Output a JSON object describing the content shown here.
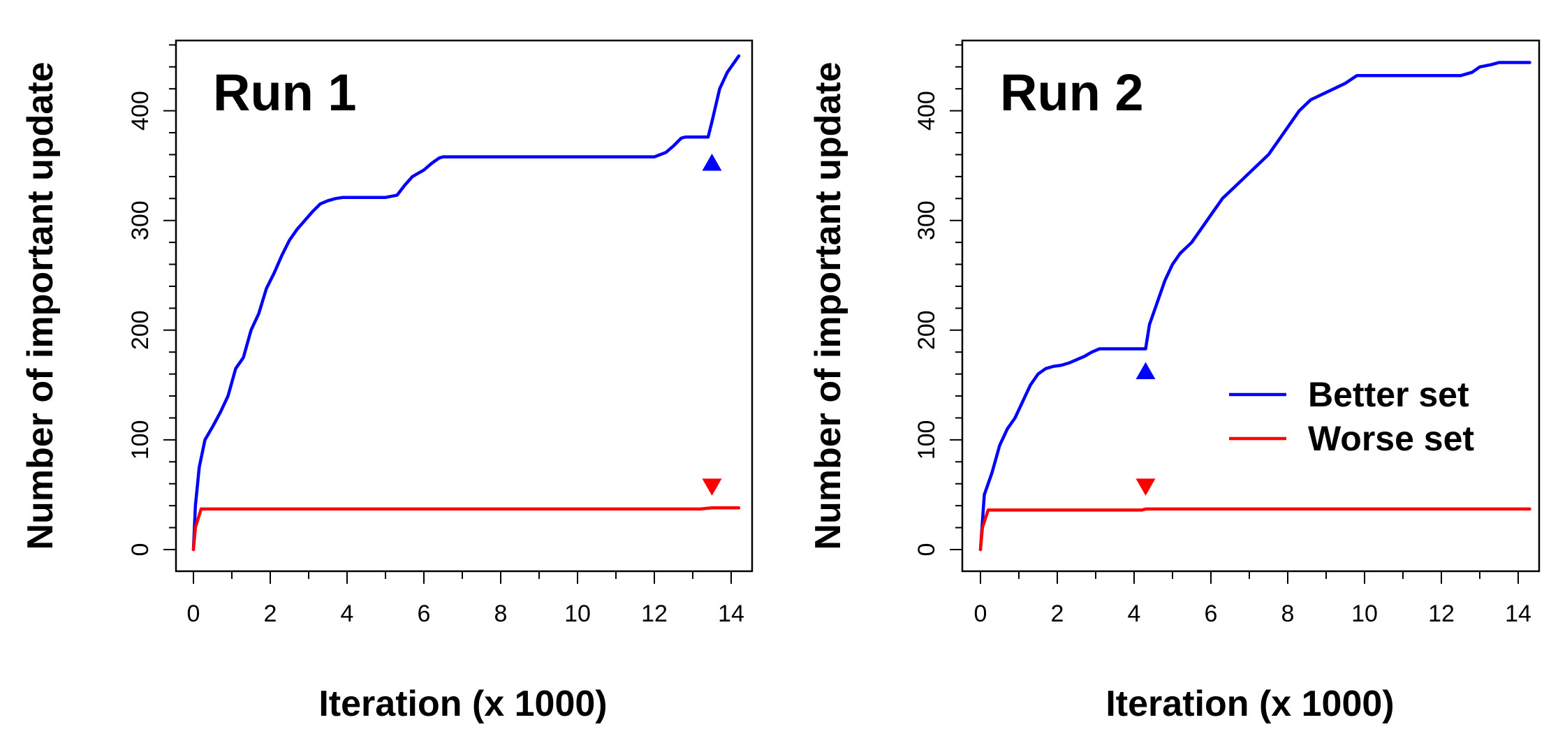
{
  "chart_data": [
    {
      "type": "line",
      "panel_label": "Run 1",
      "xlabel": "Iteration (x 1000)",
      "ylabel": "Number of important update",
      "xlim": [
        0,
        14.3
      ],
      "ylim": [
        -15,
        465
      ],
      "xticks": [
        0,
        2,
        4,
        6,
        8,
        10,
        12,
        14
      ],
      "yticks": [
        0,
        100,
        200,
        300,
        400
      ],
      "grid": false,
      "series": [
        {
          "color": "#0000ff",
          "x": [
            0.0,
            0.05,
            0.15,
            0.3,
            0.5,
            0.7,
            0.9,
            1.1,
            1.3,
            1.5,
            1.7,
            1.9,
            2.1,
            2.3,
            2.5,
            2.7,
            2.9,
            3.1,
            3.3,
            3.5,
            3.7,
            3.9,
            4.0,
            4.5,
            5.0,
            5.3,
            5.5,
            5.7,
            6.0,
            6.2,
            6.4,
            6.5,
            7.0,
            8.0,
            9.0,
            10.0,
            11.0,
            12.0,
            12.3,
            12.5,
            12.7,
            12.8,
            12.9,
            13.2,
            13.4,
            13.5,
            13.7,
            13.9,
            14.1,
            14.2
          ],
          "values": [
            0,
            40,
            75,
            100,
            112,
            125,
            140,
            165,
            175,
            200,
            215,
            238,
            252,
            268,
            282,
            292,
            300,
            308,
            315,
            318,
            320,
            321,
            321,
            321,
            321,
            323,
            332,
            340,
            346,
            352,
            357,
            358,
            358,
            358,
            358,
            358,
            358,
            358,
            362,
            368,
            375,
            376,
            376,
            376,
            376,
            390,
            420,
            435,
            445,
            450
          ]
        },
        {
          "color": "#ff0000",
          "x": [
            0.0,
            0.05,
            0.2,
            1.0,
            5.0,
            10.0,
            13.2,
            13.5,
            14.0,
            14.2
          ],
          "values": [
            0,
            20,
            37,
            37,
            37,
            37,
            37,
            38,
            38,
            38
          ]
        }
      ],
      "markers": [
        {
          "shape": "triangle-up",
          "color": "#0000ff",
          "x": 13.5,
          "y": 352
        },
        {
          "shape": "triangle-down",
          "color": "#ff0000",
          "x": 13.5,
          "y": 58
        }
      ]
    },
    {
      "type": "line",
      "panel_label": "Run 2",
      "xlabel": "Iteration (x 1000)",
      "ylabel": "Number of important update",
      "xlim": [
        0,
        14.3
      ],
      "ylim": [
        -15,
        465
      ],
      "xticks": [
        0,
        2,
        4,
        6,
        8,
        10,
        12,
        14
      ],
      "yticks": [
        0,
        100,
        200,
        300,
        400
      ],
      "grid": false,
      "legend": {
        "position": "right",
        "entries": [
          {
            "label": "Better set",
            "color": "#0000ff"
          },
          {
            "label": "Worse set",
            "color": "#ff0000"
          }
        ]
      },
      "series": [
        {
          "name": "Better set",
          "color": "#0000ff",
          "x": [
            0.0,
            0.1,
            0.3,
            0.5,
            0.7,
            0.9,
            1.1,
            1.3,
            1.5,
            1.7,
            1.9,
            2.1,
            2.3,
            2.5,
            2.7,
            2.9,
            3.1,
            3.5,
            4.0,
            4.3,
            4.4,
            4.6,
            4.8,
            5.0,
            5.2,
            5.5,
            5.8,
            6.0,
            6.3,
            6.6,
            6.9,
            7.2,
            7.5,
            7.8,
            8.0,
            8.3,
            8.6,
            8.9,
            9.2,
            9.5,
            9.8,
            10.0,
            11.0,
            12.0,
            12.5,
            12.8,
            13.0,
            13.3,
            13.5,
            14.0,
            14.3
          ],
          "values": [
            0,
            50,
            70,
            95,
            110,
            120,
            135,
            150,
            160,
            165,
            167,
            168,
            170,
            173,
            176,
            180,
            183,
            183,
            183,
            183,
            205,
            225,
            245,
            260,
            270,
            280,
            295,
            305,
            320,
            330,
            340,
            350,
            360,
            375,
            385,
            400,
            410,
            415,
            420,
            425,
            432,
            432,
            432,
            432,
            432,
            435,
            440,
            442,
            444,
            444,
            444
          ]
        },
        {
          "name": "Worse set",
          "color": "#ff0000",
          "x": [
            0.0,
            0.05,
            0.2,
            1.0,
            4.2,
            4.3,
            6.0,
            10.0,
            14.3
          ],
          "values": [
            0,
            20,
            36,
            36,
            36,
            37,
            37,
            37,
            37
          ]
        }
      ],
      "markers": [
        {
          "shape": "triangle-up",
          "color": "#0000ff",
          "x": 4.3,
          "y": 162
        },
        {
          "shape": "triangle-down",
          "color": "#ff0000",
          "x": 4.3,
          "y": 58
        }
      ]
    }
  ]
}
